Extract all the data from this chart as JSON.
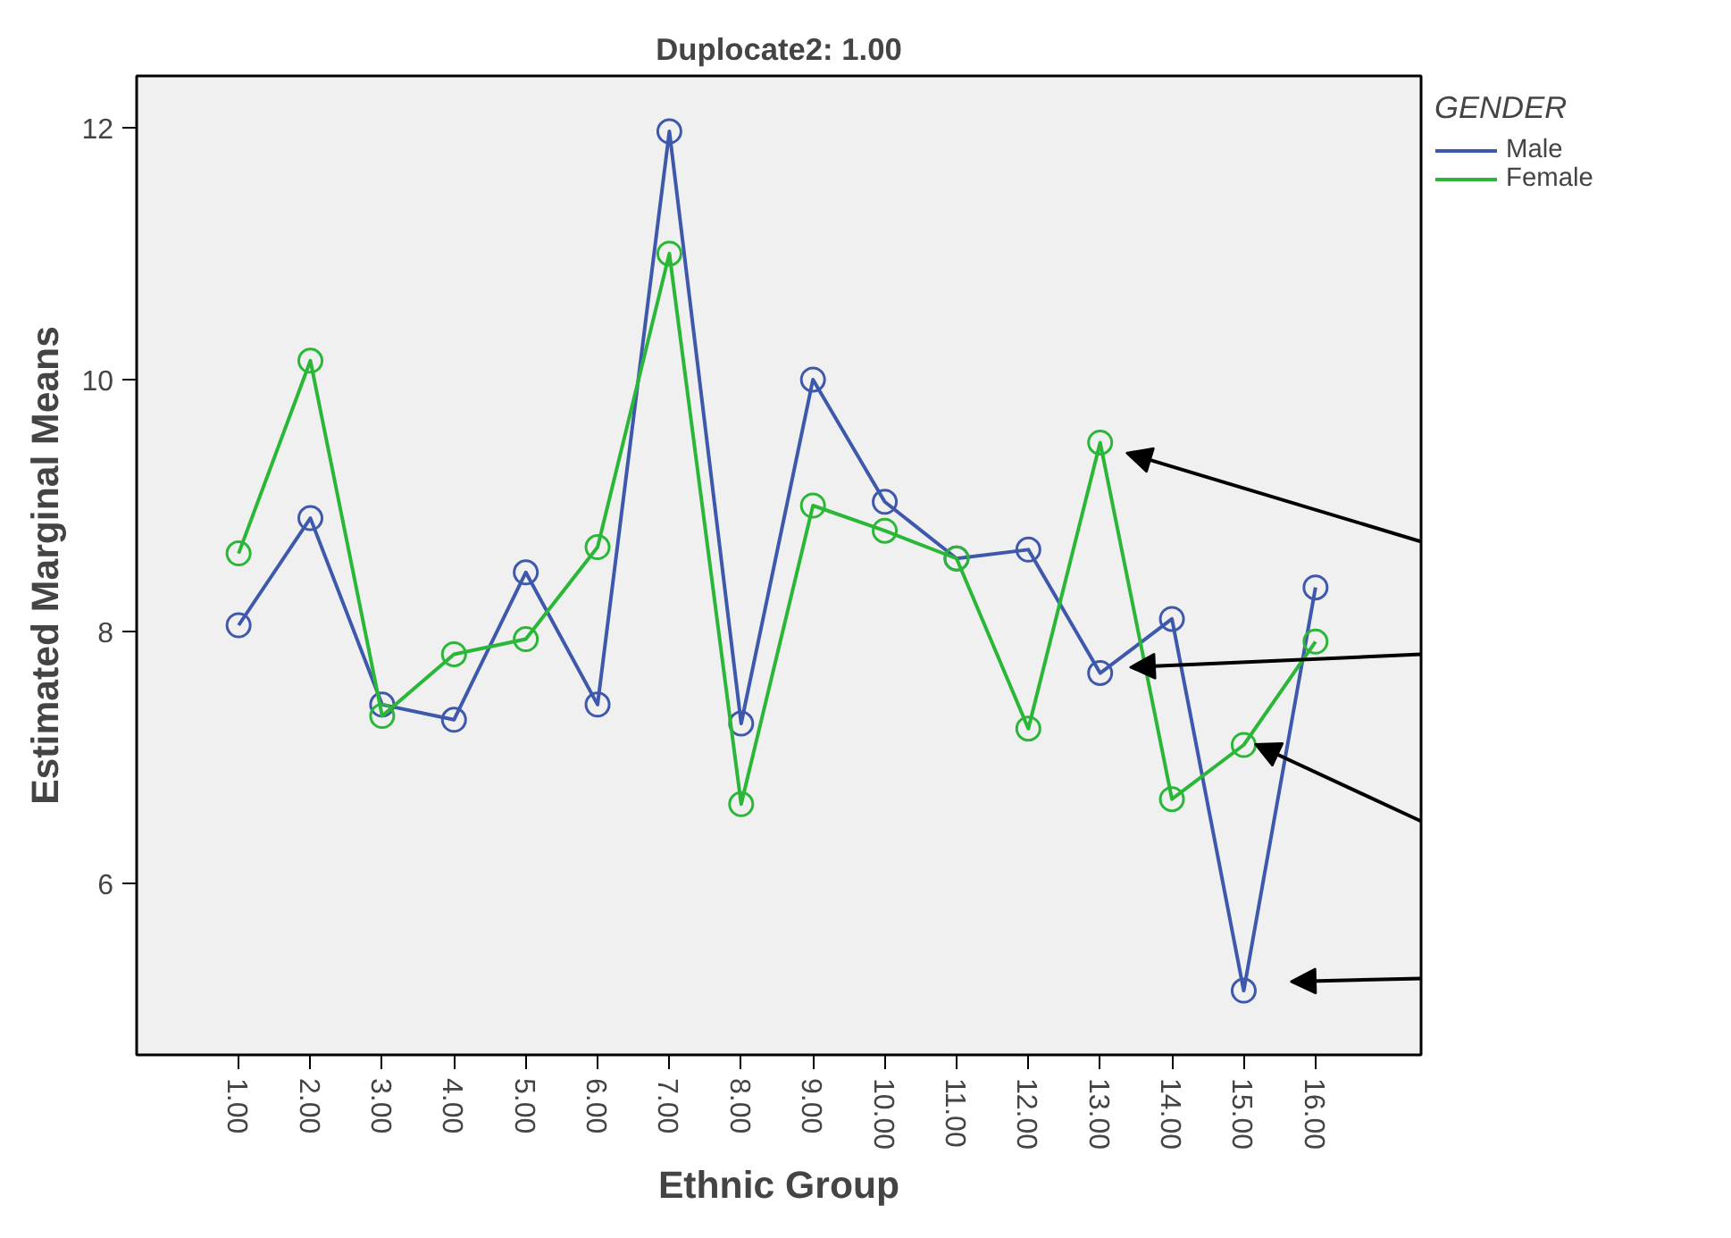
{
  "chart_data": {
    "type": "line",
    "title": "Duplocate2: 1.00",
    "xlabel": "Ethnic Group",
    "ylabel": "Estimated Marginal Means",
    "legend_title": "GENDER",
    "categories": [
      "1.00",
      "2.00",
      "3.00",
      "4.00",
      "5.00",
      "6.00",
      "7.00",
      "8.00",
      "9.00",
      "10.00",
      "11.00",
      "12.00",
      "13.00",
      "14.00",
      "15.00",
      "16.00"
    ],
    "series": [
      {
        "name": "Male",
        "color": "#3e58ac",
        "values": [
          8.05,
          8.9,
          7.42,
          7.3,
          8.47,
          7.42,
          11.97,
          7.27,
          10.0,
          9.03,
          8.58,
          8.65,
          7.67,
          8.1,
          5.15,
          8.35
        ]
      },
      {
        "name": "Female",
        "color": "#2ab737",
        "values": [
          8.62,
          10.15,
          7.33,
          7.82,
          7.94,
          8.67,
          11.0,
          6.63,
          9.0,
          8.8,
          8.58,
          7.23,
          9.5,
          6.67,
          7.1,
          7.92
        ]
      }
    ],
    "ylim": [
      4.64,
      12.41
    ],
    "yticks": [
      6,
      8,
      10,
      12
    ],
    "grid": false,
    "legend": "top right",
    "marker": "circle",
    "line_style": "solid"
  }
}
